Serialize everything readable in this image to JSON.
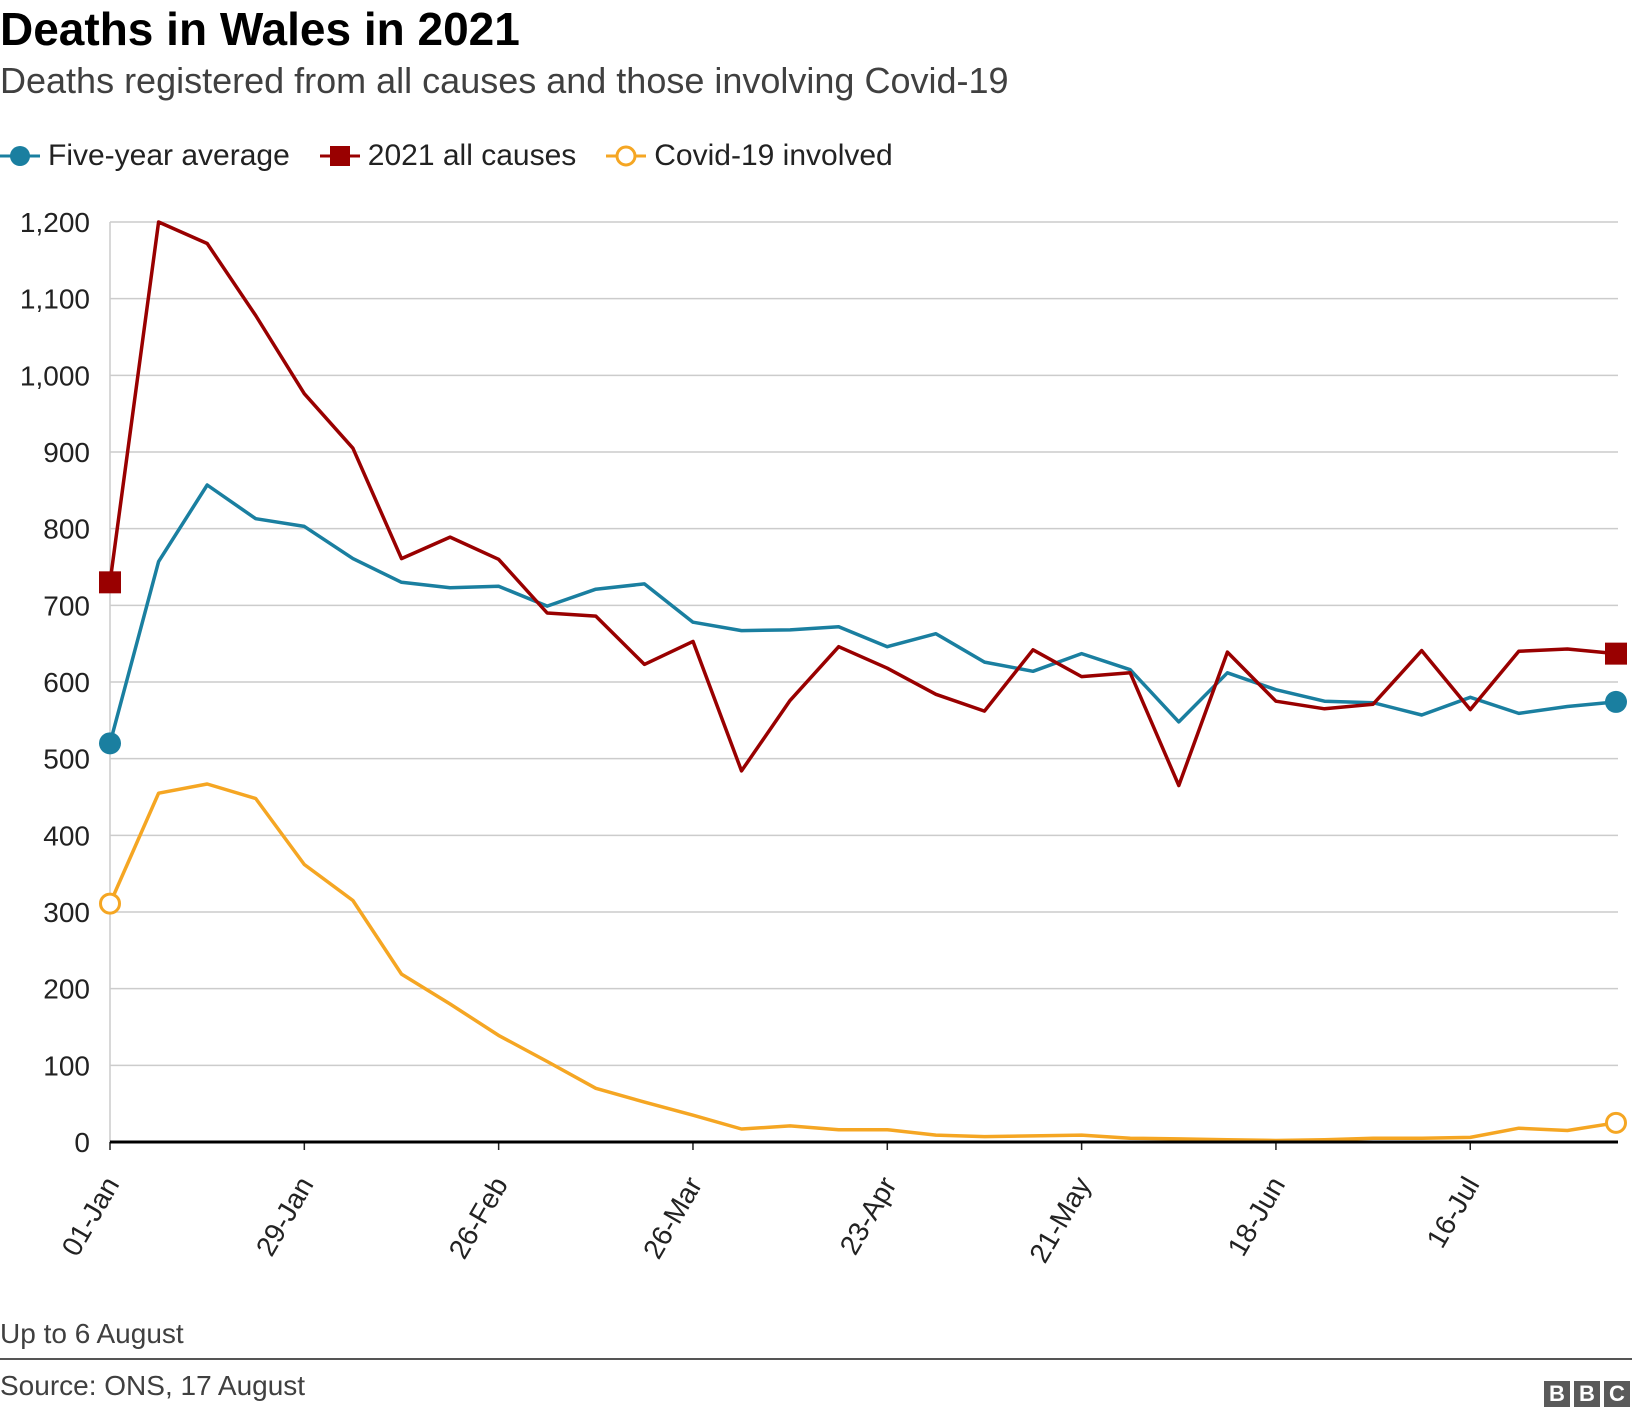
{
  "chart_data": {
    "type": "line",
    "title": "Deaths in Wales in 2021",
    "subtitle": "Deaths registered from all causes and those involving Covid-19",
    "xlabel": "",
    "ylabel": "",
    "ylim": [
      0,
      1200
    ],
    "yticks": [
      "0",
      "100",
      "200",
      "300",
      "400",
      "500",
      "600",
      "700",
      "800",
      "900",
      "1,000",
      "1,100",
      "1,200"
    ],
    "ytick_values": [
      0,
      100,
      200,
      300,
      400,
      500,
      600,
      700,
      800,
      900,
      1000,
      1100,
      1200
    ],
    "x": [
      "01-Jan",
      "08-Jan",
      "15-Jan",
      "22-Jan",
      "29-Jan",
      "05-Feb",
      "12-Feb",
      "19-Feb",
      "26-Feb",
      "05-Mar",
      "12-Mar",
      "19-Mar",
      "26-Mar",
      "02-Apr",
      "09-Apr",
      "16-Apr",
      "23-Apr",
      "30-Apr",
      "07-May",
      "14-May",
      "21-May",
      "28-May",
      "04-Jun",
      "11-Jun",
      "18-Jun",
      "25-Jun",
      "02-Jul",
      "09-Jul",
      "16-Jul",
      "23-Jul",
      "30-Jul",
      "06-Aug"
    ],
    "xtick_labels": [
      "01-Jan",
      "29-Jan",
      "26-Feb",
      "26-Mar",
      "23-Apr",
      "21-May",
      "18-Jun",
      "16-Jul"
    ],
    "xtick_indices": [
      0,
      4,
      8,
      12,
      16,
      20,
      24,
      28
    ],
    "series": [
      {
        "name": "Five-year average",
        "color": "#1a7fa0",
        "marker": "circle-filled",
        "values": [
          520,
          757,
          857,
          813,
          803,
          761,
          730,
          723,
          725,
          699,
          721,
          728,
          678,
          667,
          668,
          672,
          646,
          663,
          626,
          614,
          637,
          616,
          548,
          612,
          590,
          575,
          573,
          557,
          580,
          559,
          568,
          574
        ]
      },
      {
        "name": "2021 all causes",
        "color": "#990000",
        "marker": "square",
        "values": [
          730,
          1200,
          1172,
          1078,
          976,
          905,
          761,
          789,
          760,
          690,
          686,
          623,
          653,
          484,
          576,
          646,
          618,
          584,
          562,
          642,
          607,
          612,
          465,
          639,
          575,
          565,
          571,
          641,
          564,
          640,
          643,
          637
        ]
      },
      {
        "name": "Covid-19 involved",
        "color": "#f5a623",
        "marker": "circle-open",
        "values": [
          311,
          455,
          467,
          448,
          362,
          315,
          219,
          180,
          139,
          105,
          70,
          52,
          35,
          17,
          21,
          16,
          16,
          9,
          7,
          8,
          9,
          5,
          4,
          3,
          2,
          3,
          5,
          5,
          6,
          18,
          15,
          25
        ]
      }
    ]
  },
  "legend": {
    "items": [
      {
        "label": "Five-year average",
        "color": "#1a7fa0"
      },
      {
        "label": "2021 all causes",
        "color": "#990000"
      },
      {
        "label": "Covid-19 involved",
        "color": "#f5a623"
      }
    ]
  },
  "footer": {
    "note": "Up to 6 August",
    "source": "Source: ONS, 17 August",
    "logo": [
      "B",
      "B",
      "C"
    ]
  }
}
